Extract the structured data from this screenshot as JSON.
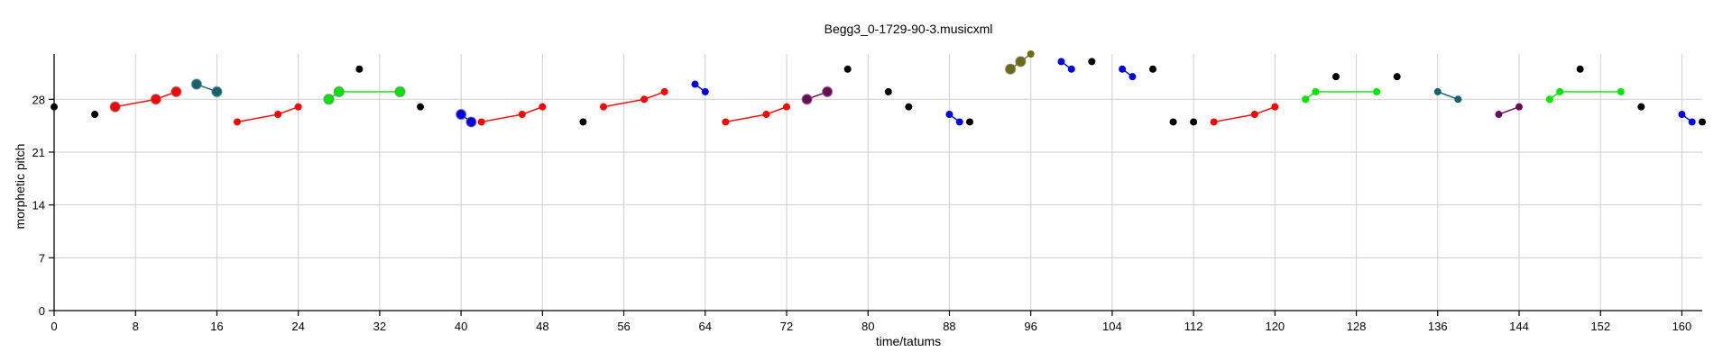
{
  "chart_data": {
    "type": "scatter",
    "title": "Begg3_0-1729-90-3.musicxml",
    "xlabel": "time/tatums",
    "ylabel": "morphetic pitch",
    "xlim": [
      0,
      162
    ],
    "ylim": [
      0,
      34
    ],
    "xticks": [
      0,
      8,
      16,
      24,
      32,
      40,
      48,
      56,
      64,
      72,
      80,
      88,
      96,
      104,
      112,
      120,
      128,
      136,
      144,
      152,
      160
    ],
    "yticks": [
      0,
      7,
      14,
      21,
      28
    ],
    "grid": true,
    "colors": {
      "black": "#000000",
      "red": "#ff0000",
      "teal": "#0f6470",
      "green": "#00e600",
      "blue": "#0000e6",
      "purple": "#6a0a5a",
      "olive": "#6b6b10"
    },
    "points": [
      {
        "x": 0,
        "y": 27,
        "c": "black",
        "s": 4
      },
      {
        "x": 4,
        "y": 26,
        "c": "black",
        "s": 4
      },
      {
        "x": 6,
        "y": 27,
        "c": "red",
        "s": 5.5
      },
      {
        "x": 10,
        "y": 28,
        "c": "red",
        "s": 5.5
      },
      {
        "x": 12,
        "y": 29,
        "c": "red",
        "s": 5.5
      },
      {
        "x": 14,
        "y": 30,
        "c": "teal",
        "s": 5.5
      },
      {
        "x": 16,
        "y": 29,
        "c": "teal",
        "s": 5.5
      },
      {
        "x": 18,
        "y": 25,
        "c": "red",
        "s": 4
      },
      {
        "x": 22,
        "y": 26,
        "c": "red",
        "s": 4
      },
      {
        "x": 24,
        "y": 27,
        "c": "red",
        "s": 4
      },
      {
        "x": 27,
        "y": 28,
        "c": "green",
        "s": 5.5
      },
      {
        "x": 28,
        "y": 29,
        "c": "green",
        "s": 5.5
      },
      {
        "x": 30,
        "y": 32,
        "c": "black",
        "s": 4
      },
      {
        "x": 34,
        "y": 29,
        "c": "green",
        "s": 5.5
      },
      {
        "x": 36,
        "y": 27,
        "c": "black",
        "s": 4
      },
      {
        "x": 40,
        "y": 26,
        "c": "blue",
        "s": 5.5
      },
      {
        "x": 41,
        "y": 25,
        "c": "blue",
        "s": 5.5
      },
      {
        "x": 42,
        "y": 25,
        "c": "red",
        "s": 4
      },
      {
        "x": 46,
        "y": 26,
        "c": "red",
        "s": 4
      },
      {
        "x": 48,
        "y": 27,
        "c": "red",
        "s": 4
      },
      {
        "x": 52,
        "y": 25,
        "c": "black",
        "s": 4
      },
      {
        "x": 54,
        "y": 27,
        "c": "red",
        "s": 4
      },
      {
        "x": 58,
        "y": 28,
        "c": "red",
        "s": 4
      },
      {
        "x": 60,
        "y": 29,
        "c": "red",
        "s": 4
      },
      {
        "x": 63,
        "y": 30,
        "c": "blue",
        "s": 4
      },
      {
        "x": 64,
        "y": 29,
        "c": "blue",
        "s": 4
      },
      {
        "x": 66,
        "y": 25,
        "c": "red",
        "s": 4
      },
      {
        "x": 70,
        "y": 26,
        "c": "red",
        "s": 4
      },
      {
        "x": 72,
        "y": 27,
        "c": "red",
        "s": 4
      },
      {
        "x": 74,
        "y": 28,
        "c": "purple",
        "s": 5.5
      },
      {
        "x": 76,
        "y": 29,
        "c": "purple",
        "s": 5.5
      },
      {
        "x": 78,
        "y": 32,
        "c": "black",
        "s": 4
      },
      {
        "x": 82,
        "y": 29,
        "c": "black",
        "s": 4
      },
      {
        "x": 84,
        "y": 27,
        "c": "black",
        "s": 4
      },
      {
        "x": 88,
        "y": 26,
        "c": "blue",
        "s": 4
      },
      {
        "x": 89,
        "y": 25,
        "c": "blue",
        "s": 4
      },
      {
        "x": 90,
        "y": 25,
        "c": "black",
        "s": 4
      },
      {
        "x": 94,
        "y": 32,
        "c": "olive",
        "s": 5.5
      },
      {
        "x": 95,
        "y": 33,
        "c": "olive",
        "s": 5.5
      },
      {
        "x": 96,
        "y": 34,
        "c": "olive",
        "s": 4
      },
      {
        "x": 99,
        "y": 33,
        "c": "blue",
        "s": 4
      },
      {
        "x": 100,
        "y": 32,
        "c": "blue",
        "s": 4
      },
      {
        "x": 102,
        "y": 33,
        "c": "black",
        "s": 4
      },
      {
        "x": 105,
        "y": 32,
        "c": "blue",
        "s": 4
      },
      {
        "x": 106,
        "y": 31,
        "c": "blue",
        "s": 4
      },
      {
        "x": 108,
        "y": 32,
        "c": "black",
        "s": 4
      },
      {
        "x": 110,
        "y": 25,
        "c": "black",
        "s": 4
      },
      {
        "x": 112,
        "y": 25,
        "c": "black",
        "s": 4
      },
      {
        "x": 114,
        "y": 25,
        "c": "red",
        "s": 4
      },
      {
        "x": 118,
        "y": 26,
        "c": "red",
        "s": 4
      },
      {
        "x": 120,
        "y": 27,
        "c": "red",
        "s": 4
      },
      {
        "x": 123,
        "y": 28,
        "c": "green",
        "s": 4
      },
      {
        "x": 124,
        "y": 29,
        "c": "green",
        "s": 4
      },
      {
        "x": 126,
        "y": 31,
        "c": "black",
        "s": 4
      },
      {
        "x": 130,
        "y": 29,
        "c": "green",
        "s": 4
      },
      {
        "x": 132,
        "y": 31,
        "c": "black",
        "s": 4
      },
      {
        "x": 136,
        "y": 29,
        "c": "teal",
        "s": 4
      },
      {
        "x": 138,
        "y": 28,
        "c": "teal",
        "s": 4
      },
      {
        "x": 142,
        "y": 26,
        "c": "purple",
        "s": 4
      },
      {
        "x": 144,
        "y": 27,
        "c": "purple",
        "s": 4
      },
      {
        "x": 147,
        "y": 28,
        "c": "green",
        "s": 4
      },
      {
        "x": 148,
        "y": 29,
        "c": "green",
        "s": 4
      },
      {
        "x": 150,
        "y": 32,
        "c": "black",
        "s": 4
      },
      {
        "x": 154,
        "y": 29,
        "c": "green",
        "s": 4
      },
      {
        "x": 156,
        "y": 27,
        "c": "black",
        "s": 4
      },
      {
        "x": 160,
        "y": 26,
        "c": "blue",
        "s": 4
      },
      {
        "x": 161,
        "y": 25,
        "c": "blue",
        "s": 4
      },
      {
        "x": 162,
        "y": 25,
        "c": "black",
        "s": 4
      }
    ],
    "segments": [
      {
        "c": "red",
        "pts": [
          [
            6,
            27
          ],
          [
            10,
            28
          ],
          [
            12,
            29
          ]
        ]
      },
      {
        "c": "teal",
        "pts": [
          [
            14,
            30
          ],
          [
            16,
            29
          ]
        ]
      },
      {
        "c": "red",
        "pts": [
          [
            18,
            25
          ],
          [
            22,
            26
          ],
          [
            24,
            27
          ]
        ]
      },
      {
        "c": "green",
        "pts": [
          [
            27,
            28
          ],
          [
            28,
            29
          ],
          [
            34,
            29
          ]
        ]
      },
      {
        "c": "blue",
        "pts": [
          [
            40,
            26
          ],
          [
            41,
            25
          ]
        ]
      },
      {
        "c": "red",
        "pts": [
          [
            42,
            25
          ],
          [
            46,
            26
          ],
          [
            48,
            27
          ]
        ]
      },
      {
        "c": "red",
        "pts": [
          [
            54,
            27
          ],
          [
            58,
            28
          ],
          [
            60,
            29
          ]
        ]
      },
      {
        "c": "blue",
        "pts": [
          [
            63,
            30
          ],
          [
            64,
            29
          ]
        ]
      },
      {
        "c": "red",
        "pts": [
          [
            66,
            25
          ],
          [
            70,
            26
          ],
          [
            72,
            27
          ]
        ]
      },
      {
        "c": "purple",
        "pts": [
          [
            74,
            28
          ],
          [
            76,
            29
          ]
        ]
      },
      {
        "c": "blue",
        "pts": [
          [
            88,
            26
          ],
          [
            89,
            25
          ]
        ]
      },
      {
        "c": "olive",
        "pts": [
          [
            94,
            32
          ],
          [
            95,
            33
          ],
          [
            96,
            34
          ]
        ]
      },
      {
        "c": "blue",
        "pts": [
          [
            99,
            33
          ],
          [
            100,
            32
          ]
        ]
      },
      {
        "c": "blue",
        "pts": [
          [
            105,
            32
          ],
          [
            106,
            31
          ]
        ]
      },
      {
        "c": "red",
        "pts": [
          [
            114,
            25
          ],
          [
            118,
            26
          ],
          [
            120,
            27
          ]
        ]
      },
      {
        "c": "green",
        "pts": [
          [
            123,
            28
          ],
          [
            124,
            29
          ],
          [
            130,
            29
          ]
        ]
      },
      {
        "c": "teal",
        "pts": [
          [
            136,
            29
          ],
          [
            138,
            28
          ]
        ]
      },
      {
        "c": "purple",
        "pts": [
          [
            142,
            26
          ],
          [
            144,
            27
          ]
        ]
      },
      {
        "c": "green",
        "pts": [
          [
            147,
            28
          ],
          [
            148,
            29
          ],
          [
            154,
            29
          ]
        ]
      },
      {
        "c": "blue",
        "pts": [
          [
            160,
            26
          ],
          [
            161,
            25
          ]
        ]
      }
    ]
  }
}
